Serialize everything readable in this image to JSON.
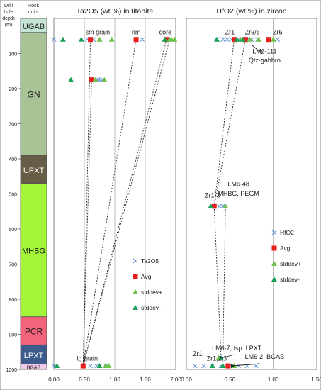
{
  "figure": {
    "depth_header": [
      "Drill",
      "hole",
      "depth",
      "(m)"
    ],
    "units_header": [
      "Rock",
      "units"
    ]
  },
  "chart_data": [
    {
      "type": "column",
      "ylim": [
        0,
        1000
      ],
      "yticks": [
        100,
        200,
        300,
        400,
        500,
        600,
        700,
        800,
        900,
        1000
      ],
      "units": [
        {
          "label": "UGAB",
          "top": 0,
          "bottom": 40,
          "color": "#c7e5d6"
        },
        {
          "label": "GN",
          "top": 40,
          "bottom": 390,
          "color": "#a8c497"
        },
        {
          "label": "UPXT",
          "top": 390,
          "bottom": 470,
          "color": "#675c45"
        },
        {
          "label": "MHBG",
          "top": 470,
          "bottom": 850,
          "color": "#a3f53a"
        },
        {
          "label": "PCR",
          "top": 850,
          "bottom": 930,
          "color": "#f2647c"
        },
        {
          "label": "LPXT",
          "top": 930,
          "bottom": 985,
          "color": "#3c5a8c"
        },
        {
          "label": "BGAB",
          "top": 985,
          "bottom": 1000,
          "color": "#f0c8e8"
        }
      ]
    },
    {
      "type": "scatter",
      "title": "Ta2O5 (wt.%) in titanite",
      "xlim": [
        0,
        2
      ],
      "xticks": [
        "0.00",
        "0.50",
        "1.00",
        "1.50",
        "2.00"
      ],
      "ylim": [
        0,
        1000
      ],
      "series": [
        {
          "name": "Ta2O5",
          "marker": "x",
          "color": "#5b8fd6",
          "points": [
            [
              0.0,
              60
            ],
            [
              0.55,
              60
            ],
            [
              0.6,
              60
            ],
            [
              0.65,
              60
            ],
            [
              1.45,
              60
            ],
            [
              1.9,
              60
            ],
            [
              0.65,
              175
            ],
            [
              0.72,
              175
            ],
            [
              0.75,
              175
            ],
            [
              0.8,
              175
            ],
            [
              0.0,
              990
            ],
            [
              0.5,
              990
            ],
            [
              0.6,
              990
            ],
            [
              0.7,
              990
            ],
            [
              0.85,
              990
            ]
          ]
        },
        {
          "name": "Avg",
          "marker": "square",
          "color": "#e81e1e",
          "points": [
            [
              0.6,
              60
            ],
            [
              1.35,
              60
            ],
            [
              1.85,
              60
            ],
            [
              0.62,
              175
            ],
            [
              0.48,
              990
            ]
          ]
        },
        {
          "name": "stddev+",
          "marker": "triangle",
          "color": "#6cc24a",
          "points": [
            [
              0.75,
              60
            ],
            [
              0.95,
              60
            ],
            [
              1.9,
              60
            ],
            [
              1.93,
              60
            ],
            [
              1.98,
              60
            ],
            [
              0.68,
              175
            ],
            [
              0.83,
              175
            ],
            [
              0.85,
              990
            ],
            [
              0.9,
              990
            ]
          ]
        },
        {
          "name": "stddev-",
          "marker": "triangle",
          "color": "#1aa05a",
          "points": [
            [
              0.15,
              60
            ],
            [
              0.45,
              60
            ],
            [
              1.82,
              60
            ],
            [
              0.28,
              175
            ],
            [
              0.05,
              990
            ],
            [
              0.75,
              990
            ]
          ]
        }
      ],
      "annotations": [
        {
          "text": "sm grain",
          "x": 0.72,
          "y": 45
        },
        {
          "text": "rim",
          "x": 1.35,
          "y": 45
        },
        {
          "text": "core",
          "x": 1.83,
          "y": 45
        },
        {
          "text": "lg grain",
          "x": 0.55,
          "y": 975
        }
      ],
      "connectors": [
        [
          [
            0.6,
            60
          ],
          [
            0.48,
            990
          ]
        ],
        [
          [
            1.35,
            60
          ],
          [
            0.48,
            990
          ]
        ],
        [
          [
            1.85,
            60
          ],
          [
            0.48,
            990
          ]
        ],
        [
          [
            1.9,
            60
          ],
          [
            0.48,
            990
          ]
        ],
        [
          [
            0.62,
            175
          ],
          [
            0.48,
            990
          ]
        ]
      ],
      "legend": [
        "Ta2O5",
        "Avg",
        "stddev+",
        "stddev-"
      ]
    },
    {
      "type": "scatter",
      "title": "HfO2 (wt.%) in zircon",
      "xlim": [
        0,
        1.5
      ],
      "xticks": [
        "0.00",
        "0.50",
        "1.00",
        "1.50"
      ],
      "ylim": [
        0,
        1000
      ],
      "series": [
        {
          "name": "HfO2",
          "marker": "x",
          "color": "#5b8fd6",
          "points": [
            [
              0.35,
              60
            ],
            [
              0.42,
              60
            ],
            [
              0.47,
              60
            ],
            [
              0.52,
              60
            ],
            [
              0.56,
              60
            ],
            [
              0.6,
              60
            ],
            [
              0.63,
              60
            ],
            [
              0.66,
              60
            ],
            [
              0.7,
              60
            ],
            [
              0.75,
              60
            ],
            [
              0.82,
              60
            ],
            [
              0.95,
              60
            ],
            [
              1.05,
              60
            ],
            [
              0.38,
              535
            ],
            [
              0.42,
              535
            ],
            [
              0.1,
              990
            ],
            [
              0.2,
              990
            ],
            [
              0.3,
              990
            ],
            [
              0.4,
              990
            ],
            [
              0.5,
              990
            ],
            [
              0.6,
              990
            ],
            [
              0.7,
              990
            ],
            [
              0.8,
              990
            ]
          ]
        },
        {
          "name": "Avg",
          "marker": "square",
          "color": "#e81e1e",
          "points": [
            [
              0.55,
              60
            ],
            [
              0.68,
              60
            ],
            [
              0.95,
              60
            ],
            [
              0.32,
              535
            ],
            [
              0.48,
              990
            ]
          ]
        },
        {
          "name": "stddev+",
          "marker": "triangle",
          "color": "#6cc24a",
          "points": [
            [
              0.62,
              60
            ],
            [
              0.73,
              60
            ],
            [
              0.83,
              60
            ],
            [
              1.0,
              60
            ],
            [
              0.45,
              535
            ],
            [
              0.37,
              968
            ],
            [
              0.55,
              990
            ]
          ]
        },
        {
          "name": "stddev-",
          "marker": "triangle",
          "color": "#1aa05a",
          "points": [
            [
              0.35,
              60
            ],
            [
              0.58,
              60
            ],
            [
              0.65,
              60
            ],
            [
              0.28,
              535
            ],
            [
              0.4,
              968
            ],
            [
              0.3,
              990
            ],
            [
              0.42,
              990
            ]
          ]
        }
      ],
      "annotations": [
        {
          "text": "Zr1",
          "x": 0.5,
          "y": 45
        },
        {
          "text": "Zr3/5",
          "x": 0.76,
          "y": 45
        },
        {
          "text": "Zr6",
          "x": 1.05,
          "y": 45
        },
        {
          "text": "LM6-111",
          "x": 0.9,
          "y": 100
        },
        {
          "text": "Qtz-gabbro",
          "x": 0.9,
          "y": 125
        },
        {
          "text": "Zr1-3",
          "x": 0.3,
          "y": 510
        },
        {
          "text": "LM6-48",
          "x": 0.6,
          "y": 478
        },
        {
          "text": "MHBG, PEGM",
          "x": 0.6,
          "y": 505
        },
        {
          "text": "Zr1",
          "x": 0.13,
          "y": 962
        },
        {
          "text": "LM6-7, fsp. LPXT",
          "x": 0.58,
          "y": 945
        },
        {
          "text": "Zr1,2,3",
          "x": 0.35,
          "y": 975
        },
        {
          "text": "LM6-2, BGAB",
          "x": 0.9,
          "y": 970
        }
      ],
      "connectors": [
        [
          [
            0.55,
            60
          ],
          [
            0.32,
            535
          ]
        ],
        [
          [
            0.68,
            60
          ],
          [
            0.32,
            535
          ]
        ],
        [
          [
            0.32,
            535
          ],
          [
            0.4,
            968
          ]
        ],
        [
          [
            0.45,
            535
          ],
          [
            0.42,
            968
          ]
        ]
      ],
      "legend": [
        "HfO2",
        "Avg",
        "stddev+",
        "stddev-"
      ]
    }
  ]
}
